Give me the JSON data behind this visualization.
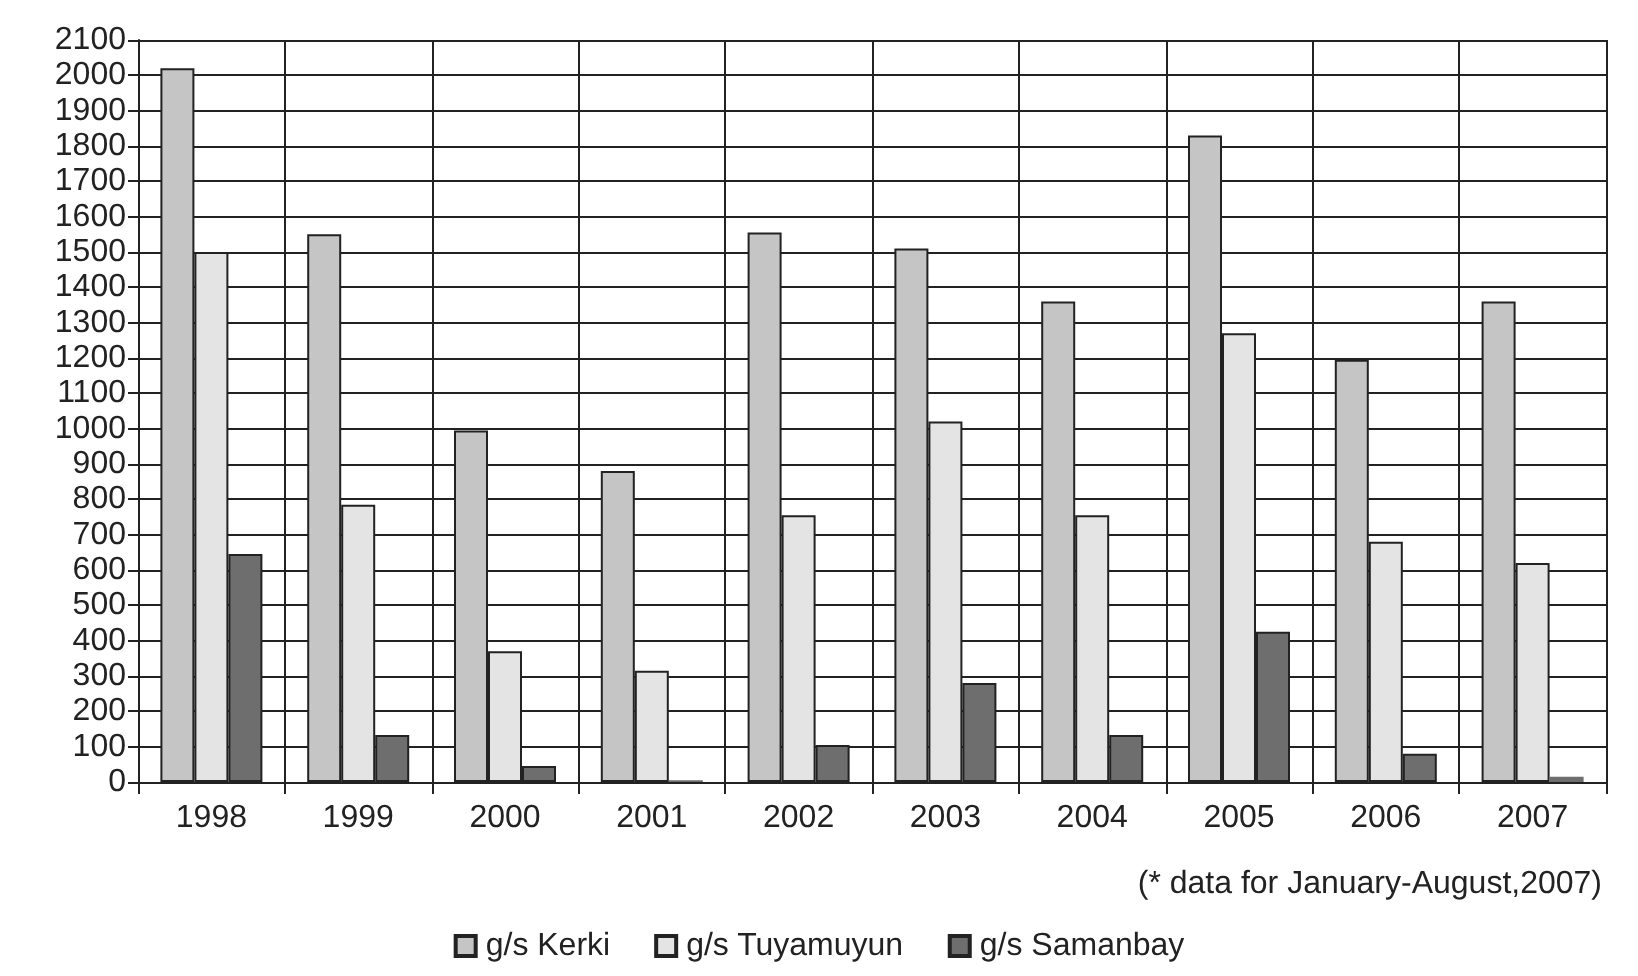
{
  "chart_data": {
    "type": "bar",
    "categories": [
      "1998",
      "1999",
      "2000",
      "2001",
      "2002",
      "2003",
      "2004",
      "2005",
      "2006",
      "2007"
    ],
    "series": [
      {
        "name": "g/s Kerki",
        "color": "#c4c5c4",
        "values": [
          2020,
          1550,
          995,
          880,
          1555,
          1510,
          1360,
          1830,
          1195,
          1360
        ]
      },
      {
        "name": "g/s Tuyamuyun",
        "color": "#e3e4e3",
        "values": [
          1500,
          785,
          370,
          315,
          755,
          1020,
          755,
          1270,
          680,
          620
        ]
      },
      {
        "name": "g/s Samanbay",
        "color": "#6e6e6e",
        "values": [
          645,
          133,
          45,
          5,
          105,
          280,
          133,
          425,
          80,
          15
        ]
      }
    ],
    "ylim": [
      0,
      2100
    ],
    "yticks": [
      0,
      100,
      200,
      300,
      400,
      500,
      600,
      700,
      800,
      900,
      1000,
      1100,
      1200,
      1300,
      1400,
      1500,
      1600,
      1700,
      1800,
      1900,
      2000,
      2100
    ],
    "annotations": [
      "(* data for January-August,2007)"
    ],
    "grid": true,
    "legend": "bottom"
  }
}
